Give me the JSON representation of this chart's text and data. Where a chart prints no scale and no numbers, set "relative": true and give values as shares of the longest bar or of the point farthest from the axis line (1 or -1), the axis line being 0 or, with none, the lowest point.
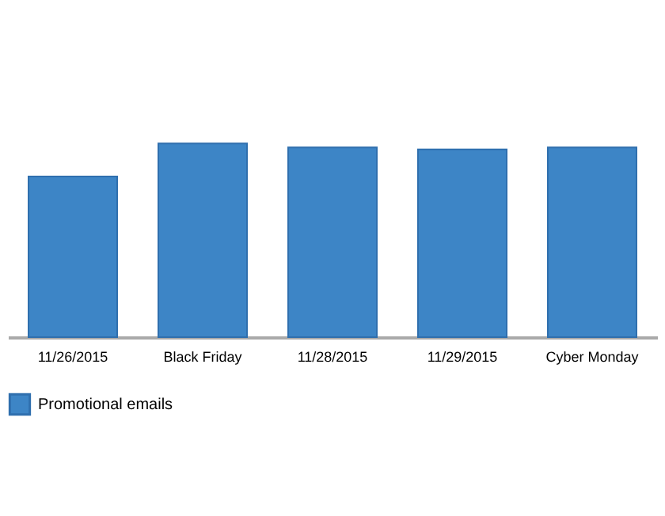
{
  "chart_data": {
    "type": "bar",
    "relative": true,
    "legend": "bottom",
    "categories": [
      "11/26/2015",
      "Black Friday",
      "11/28/2015",
      "11/29/2015",
      "Cyber Monday"
    ],
    "series": [
      {
        "name": "Promotional emails",
        "color": "#3d85c6",
        "values": [
          0.83,
          1,
          0.98,
          0.97,
          0.98
        ]
      }
    ]
  }
}
